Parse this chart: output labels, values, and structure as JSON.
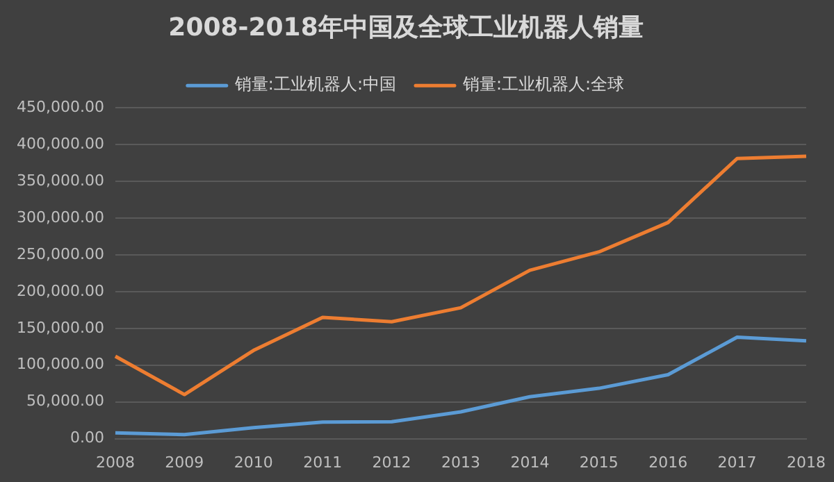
{
  "chart_data": {
    "type": "line",
    "title": "2008-2018年中国及全球工业机器人销量",
    "categories": [
      "2008",
      "2009",
      "2010",
      "2011",
      "2012",
      "2013",
      "2014",
      "2015",
      "2016",
      "2017",
      "2018"
    ],
    "series": [
      {
        "name": "销量:工业机器人:中国",
        "color": "#5b9bd5",
        "values": [
          8000,
          5500,
          15000,
          22500,
          23000,
          36500,
          57000,
          68500,
          87000,
          138000,
          133000
        ]
      },
      {
        "name": "销量:工业机器人:全球",
        "color": "#ed7d31",
        "values": [
          112000,
          60000,
          120000,
          165000,
          159000,
          178000,
          229000,
          254000,
          294000,
          381000,
          384000
        ]
      }
    ],
    "ylim": [
      0,
      450000
    ],
    "yticks": [
      {
        "value": 0,
        "label": "0.00"
      },
      {
        "value": 50000,
        "label": "50,000.00"
      },
      {
        "value": 100000,
        "label": "100,000.00"
      },
      {
        "value": 150000,
        "label": "150,000.00"
      },
      {
        "value": 200000,
        "label": "200,000.00"
      },
      {
        "value": 250000,
        "label": "250,000.00"
      },
      {
        "value": 300000,
        "label": "300,000.00"
      },
      {
        "value": 350000,
        "label": "350,000.00"
      },
      {
        "value": 400000,
        "label": "400,000.00"
      },
      {
        "value": 450000,
        "label": "450,000.00"
      }
    ],
    "grid": "y",
    "legend": "top",
    "marker": "none",
    "line_style": "solid"
  }
}
